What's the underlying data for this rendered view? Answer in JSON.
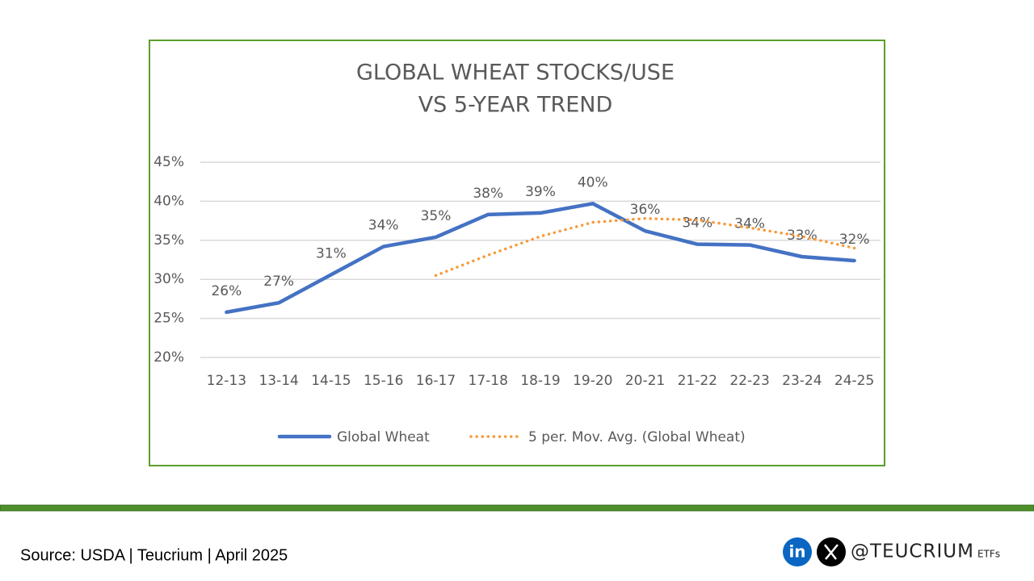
{
  "chart_data": {
    "type": "line",
    "title": "GLOBAL WHEAT STOCKS/USE",
    "subtitle": "VS 5-YEAR TREND",
    "categories": [
      "12-13",
      "13-14",
      "14-15",
      "15-16",
      "16-17",
      "17-18",
      "18-19",
      "19-20",
      "20-21",
      "21-22",
      "22-23",
      "23-24",
      "24-25"
    ],
    "series": [
      {
        "name": "Global Wheat",
        "color": "#4472c4",
        "style": "solid",
        "values": [
          25.8,
          27.0,
          30.6,
          34.2,
          35.4,
          38.3,
          38.5,
          39.7,
          36.2,
          34.5,
          34.4,
          32.9,
          32.4
        ],
        "value_labels": [
          "26%",
          "27%",
          "31%",
          "34%",
          "35%",
          "38%",
          "39%",
          "40%",
          "36%",
          "34%",
          "34%",
          "33%",
          "32%"
        ]
      },
      {
        "name": "5 per. Mov. Avg. (Global Wheat)",
        "color": "#f79a3a",
        "style": "dotted",
        "values": [
          null,
          null,
          null,
          null,
          30.5,
          33.1,
          35.5,
          37.3,
          37.8,
          37.6,
          36.6,
          35.5,
          34.0
        ]
      }
    ],
    "ylim": [
      20,
      45
    ],
    "yticks": [
      {
        "value": 20,
        "label": "20%"
      },
      {
        "value": 25,
        "label": "25%"
      },
      {
        "value": 30,
        "label": "30%"
      },
      {
        "value": 35,
        "label": "35%"
      },
      {
        "value": 40,
        "label": "40%"
      },
      {
        "value": 45,
        "label": "45%"
      }
    ],
    "grid": true,
    "legend": "bottom"
  },
  "footer": {
    "source": "Source: USDA | Teucrium | April 2025",
    "linkedin": "in",
    "handle": "@TEUCRIUM",
    "suffix": "ETFs"
  }
}
